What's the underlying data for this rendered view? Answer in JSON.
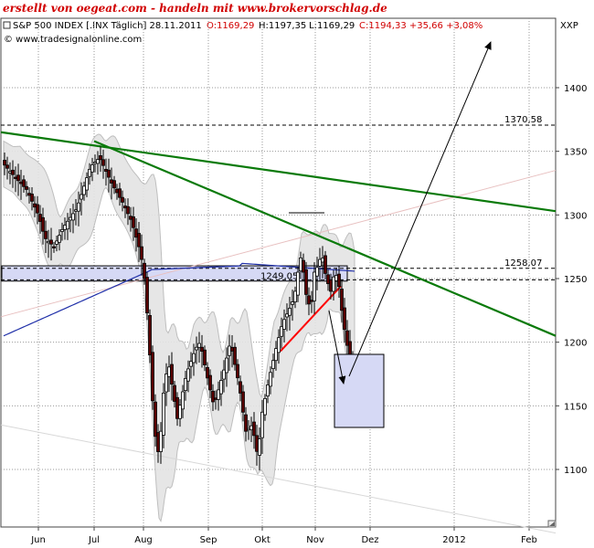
{
  "overlay_title": "erstellt von oegeat.com - handeln mit www.brokervorschlag.de",
  "header": {
    "instrument": "S&P 500 INDEX [.INX Täglich] 28.11.2011",
    "open": "O:1169,29",
    "high": "H:1197,35",
    "low": "L:1169,29",
    "close_change": "C:1194,33 +35,66 +3,08%",
    "scale_label": "XXP"
  },
  "watermark": "© www.tradesignalonline.com",
  "colors": {
    "grid": "#9a9a9a",
    "trend_green": "#0a7a0a",
    "ma_blue": "#1f2fa8",
    "trend_red": "#ff0000",
    "candle_dark": "#5a0000",
    "candle_light": "#7a1010",
    "band_fill": "#e4e4e4",
    "box_fill": "#d6d9f5",
    "header_red": "#d10000"
  },
  "chart_data": {
    "type": "candlestick",
    "title": "S&P 500 INDEX [.INX Täglich] 28.11.2011",
    "x_tick_labels": [
      "Jun",
      "Jul",
      "Aug",
      "Sep",
      "Okt",
      "Nov",
      "Dez",
      "2012",
      "Feb"
    ],
    "y_ticks": [
      1100,
      1150,
      1200,
      1250,
      1300,
      1350,
      1400
    ],
    "ylim": [
      1050,
      1450
    ],
    "grid": true,
    "annotations": [
      {
        "label": "1370,58",
        "value": 1370.58,
        "style": "dashed"
      },
      {
        "label": "1258,07",
        "value": 1258.07,
        "style": "dashed"
      },
      {
        "label": "1249,05",
        "value": 1249.05,
        "style": "dashed"
      }
    ],
    "last_close": 1194.33,
    "price_path": [
      [
        0,
        1340
      ],
      [
        12,
        1330
      ],
      [
        25,
        1320
      ],
      [
        38,
        1300
      ],
      [
        45,
        1282
      ],
      [
        55,
        1275
      ],
      [
        65,
        1290
      ],
      [
        80,
        1305
      ],
      [
        95,
        1338
      ],
      [
        105,
        1345
      ],
      [
        118,
        1325
      ],
      [
        130,
        1310
      ],
      [
        140,
        1295
      ],
      [
        150,
        1270
      ],
      [
        155,
        1245
      ],
      [
        160,
        1190
      ],
      [
        165,
        1130
      ],
      [
        170,
        1110
      ],
      [
        175,
        1160
      ],
      [
        180,
        1185
      ],
      [
        190,
        1140
      ],
      [
        200,
        1175
      ],
      [
        210,
        1195
      ],
      [
        215,
        1200
      ],
      [
        222,
        1175
      ],
      [
        230,
        1150
      ],
      [
        240,
        1175
      ],
      [
        248,
        1200
      ],
      [
        258,
        1165
      ],
      [
        265,
        1130
      ],
      [
        272,
        1135
      ],
      [
        278,
        1110
      ],
      [
        283,
        1145
      ],
      [
        290,
        1170
      ],
      [
        298,
        1195
      ],
      [
        305,
        1215
      ],
      [
        312,
        1225
      ],
      [
        318,
        1235
      ],
      [
        322,
        1255
      ],
      [
        326,
        1270
      ],
      [
        330,
        1240
      ],
      [
        336,
        1225
      ],
      [
        340,
        1255
      ],
      [
        344,
        1260
      ],
      [
        348,
        1270
      ],
      [
        353,
        1250
      ],
      [
        358,
        1240
      ],
      [
        362,
        1255
      ],
      [
        366,
        1250
      ],
      [
        370,
        1225
      ],
      [
        374,
        1205
      ],
      [
        378,
        1190
      ],
      [
        381,
        1170
      ],
      [
        384,
        1160
      ],
      [
        387,
        1180
      ],
      [
        390,
        1195
      ]
    ]
  }
}
